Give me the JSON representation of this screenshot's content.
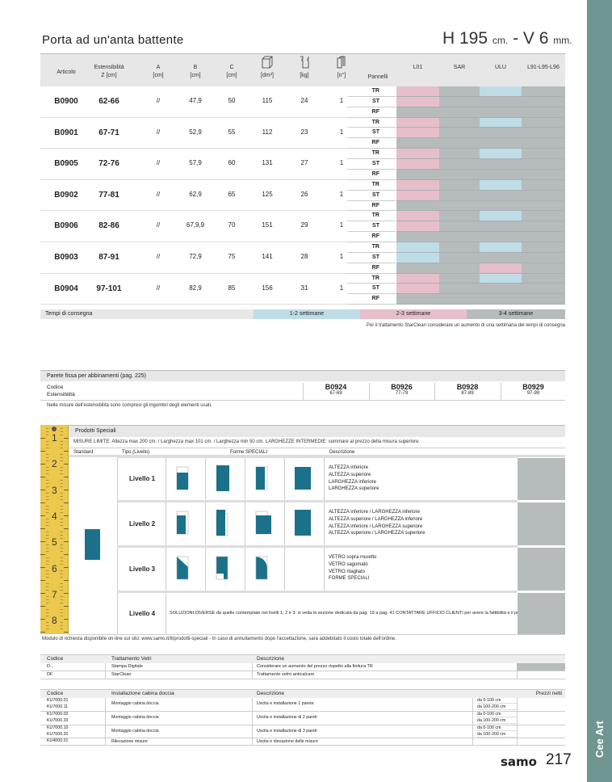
{
  "title": "Porta ad un'anta battente",
  "dims": {
    "h": "H 195",
    "h_unit": "cm.",
    "sep": " - ",
    "v": "V 6",
    "v_unit": "mm."
  },
  "table": {
    "headers": {
      "articolo": "Articolo",
      "est": "Estensibilità",
      "est_unit": "Z [cm]",
      "a": "A",
      "a_unit": "[cm]",
      "b": "B",
      "b_unit": "[cm]",
      "c": "C",
      "c_unit": "[cm]",
      "vol_unit": "[dm³]",
      "kg_unit": "[kg]",
      "n_unit": "[n°]",
      "pannelli": "Pannelli",
      "finishes": [
        "L01",
        "SAR",
        "ULU",
        "L91-L95-L96"
      ]
    },
    "panels": [
      "TR",
      "ST",
      "RF"
    ],
    "products": [
      {
        "code": "B0900",
        "est": "62-66",
        "a": "//",
        "b": "47,9",
        "c": "50",
        "vol": "115",
        "kg": "24",
        "n": "1",
        "colors": [
          [
            "pink",
            "grey",
            "blue",
            "grey"
          ],
          [
            "pink",
            "grey",
            "grey",
            "grey"
          ],
          [
            "grey",
            "grey",
            "grey",
            "grey"
          ]
        ]
      },
      {
        "code": "B0901",
        "est": "67-71",
        "a": "//",
        "b": "52,9",
        "c": "55",
        "vol": "112",
        "kg": "23",
        "n": "1",
        "colors": [
          [
            "pink",
            "grey",
            "blue",
            "grey"
          ],
          [
            "pink",
            "grey",
            "grey",
            "grey"
          ],
          [
            "grey",
            "grey",
            "grey",
            "grey"
          ]
        ]
      },
      {
        "code": "B0905",
        "est": "72-76",
        "a": "//",
        "b": "57,9",
        "c": "60",
        "vol": "131",
        "kg": "27",
        "n": "1",
        "colors": [
          [
            "pink",
            "grey",
            "blue",
            "grey"
          ],
          [
            "pink",
            "grey",
            "grey",
            "grey"
          ],
          [
            "grey",
            "grey",
            "grey",
            "grey"
          ]
        ]
      },
      {
        "code": "B0902",
        "est": "77-81",
        "a": "//",
        "b": "62,9",
        "c": "65",
        "vol": "125",
        "kg": "26",
        "n": "1",
        "colors": [
          [
            "pink",
            "grey",
            "blue",
            "grey"
          ],
          [
            "pink",
            "grey",
            "grey",
            "grey"
          ],
          [
            "grey",
            "grey",
            "grey",
            "grey"
          ]
        ]
      },
      {
        "code": "B0906",
        "est": "82-86",
        "a": "//",
        "b": "67,9,9",
        "c": "70",
        "vol": "151",
        "kg": "29",
        "n": "1",
        "colors": [
          [
            "pink",
            "grey",
            "blue",
            "grey"
          ],
          [
            "pink",
            "grey",
            "grey",
            "grey"
          ],
          [
            "grey",
            "grey",
            "grey",
            "grey"
          ]
        ]
      },
      {
        "code": "B0903",
        "est": "87-91",
        "a": "//",
        "b": "72,9",
        "c": "75",
        "vol": "141",
        "kg": "28",
        "n": "1",
        "colors": [
          [
            "blue",
            "grey",
            "blue",
            "grey"
          ],
          [
            "blue",
            "grey",
            "grey",
            "grey"
          ],
          [
            "grey",
            "grey",
            "pink",
            "grey"
          ]
        ]
      },
      {
        "code": "B0904",
        "est": "97-101",
        "a": "//",
        "b": "82,9",
        "c": "85",
        "vol": "156",
        "kg": "31",
        "n": "1",
        "colors": [
          [
            "pink",
            "grey",
            "blue",
            "grey"
          ],
          [
            "pink",
            "grey",
            "grey",
            "grey"
          ],
          [
            "grey",
            "grey",
            "grey",
            "grey"
          ]
        ]
      }
    ]
  },
  "colors": {
    "pink": "#e6bfca",
    "blue": "#bfdde6",
    "grey": "#b6bbbc",
    "teal": "#1b7189",
    "sidebar": "#6f9690"
  },
  "tempi": {
    "label": "Tempi di consegna",
    "t1": "1-2 settimane",
    "t2": "2-3 settimane",
    "t3": "3-4 settimane",
    "note": "Per il trattamento StarClean considerare un aumento di una settimana dei tempi di consegna"
  },
  "parete": {
    "title": "Parete fissa per abbinamenti (pag. 225)",
    "codice": "Codice",
    "est": "Estensibilità",
    "items": [
      {
        "code": "B0924",
        "est": "67-69"
      },
      {
        "code": "B0926",
        "est": "77-79"
      },
      {
        "code": "B0928",
        "est": "87-89"
      },
      {
        "code": "B0929",
        "est": "97-99"
      }
    ],
    "note": "Nelle misure dell'estensibilità sono compresi gli ingombri degli elementi usati."
  },
  "speciali": {
    "title": "Prodotti Speciali",
    "limits": "MISURE LIMITE: Altezza max 200 cm. / Larghezza max 101 cm. / Larghezza min 50 cm.     LARGHEZZE INTERMEDIE: sommare al prezzo della misura superiore.",
    "cols": {
      "standard": "Standard",
      "tipo": "Tipo (Livello)",
      "forme": "Forme SPECIALI",
      "descr": "Descrizione"
    },
    "ruler": [
      "1",
      "2",
      "3",
      "4",
      "5",
      "6",
      "7",
      "8"
    ],
    "levels": [
      {
        "name": "Livello 1",
        "desc": [
          "ALTEZZA inferiore",
          "ALTEZZA superiore",
          "LARGHEZZA inferiore",
          "LARGHEZZA superiore"
        ]
      },
      {
        "name": "Livello 2",
        "desc": [
          "ALTEZZA inferiore / LARGHEZZA inferiore",
          "ALTEZZA superiore / LARGHEZZA inferiore",
          "ALTEZZA inferiore / LARGHEZZA superiore",
          "ALTEZZA superiore / LARGHEZZA superiore"
        ]
      },
      {
        "name": "Livello 3",
        "desc": [
          "VETRO sopra muretto",
          "VETRO sagomato",
          "VETRO ritagliato",
          "FORME SPECIALI"
        ]
      },
      {
        "name": "Livello 4",
        "desc": [
          "SOLUZIONI DIVERSE da quelle contemplate nei livelli 1, 2 e 3: si veda la sezione dedicata da pag. 19 a pag. 41 CONTATTARE UFFICIO CLIENTI per avere la fattibilità e il prezzo"
        ]
      }
    ],
    "note": "Modulo di richiesta disponibile on-line sul sito: www.samo.it/it/prodotti-speciali - In caso di annullamento dopo l'accettazione, sarà addebitato il costo totale dell'ordine."
  },
  "trattamento": {
    "headers": [
      "Codice",
      "Trattamento Vetri",
      "Descrizione"
    ],
    "rows": [
      [
        "D...",
        "Stampa Digitale",
        "Considerare un aumento del prezzo rispetto alla finitura TR"
      ],
      [
        "DF",
        "StarClean",
        "Trattamento vetro anticalcare"
      ]
    ]
  },
  "installazione": {
    "headers": [
      "Codice",
      "Installazione cabina doccia",
      "Descrizione",
      "Prezzi netti"
    ],
    "groups": [
      {
        "codes": [
          "KU7000.01",
          "KU7000.11"
        ],
        "name": "Montaggio cabina doccia",
        "desc": "Uscita e installazione 1 parete",
        "ranges": [
          "da 0-100 cm",
          "da 100-200 cm"
        ]
      },
      {
        "codes": [
          "KU7000.03",
          "KU7000.33"
        ],
        "name": "Montaggio cabina doccia",
        "desc": "Uscita e installazione di 2 pareti",
        "ranges": [
          "da 0-100 cm",
          "da 100-200 cm"
        ]
      },
      {
        "codes": [
          "KU7000.10",
          "KU7000.20"
        ],
        "name": "Montaggio cabina doccia",
        "desc": "Uscita e installazione di 3 pareti",
        "ranges": [
          "da 0-100 cm",
          "da 100-200 cm"
        ]
      },
      {
        "codes": [
          "KU4000.01"
        ],
        "name": "Rilevazione misure",
        "desc": "Uscita e rilevazione delle misure",
        "ranges": []
      }
    ]
  },
  "footer": {
    "logo": "samo",
    "page": "217",
    "brand": "Cee Art"
  }
}
